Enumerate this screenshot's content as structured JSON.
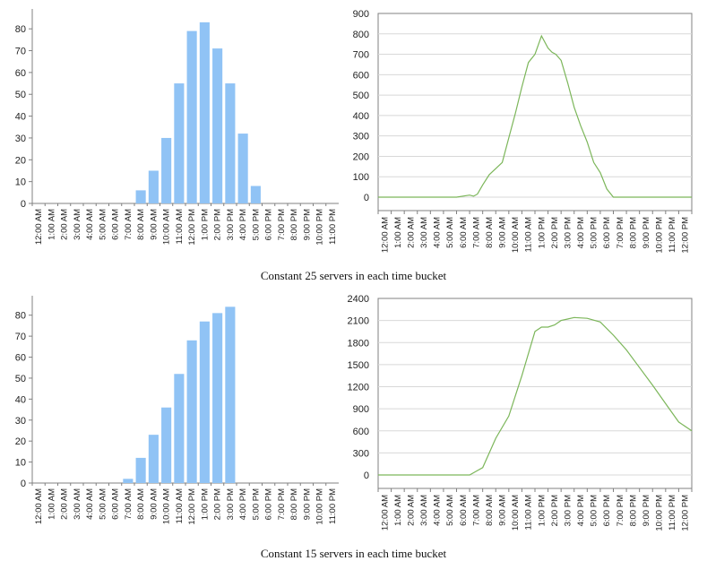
{
  "time_labels_am_pm": [
    "12:00 AM",
    "1:00 AM",
    "2:00 AM",
    "3:00 AM",
    "4:00 AM",
    "5:00 AM",
    "6:00 AM",
    "7:00 AM",
    "8:00 AM",
    "9:00 AM",
    "10:00 AM",
    "11:00 AM",
    "12:00 PM",
    "1:00 PM",
    "2:00 PM",
    "3:00 PM",
    "4:00 PM",
    "5:00 PM",
    "6:00 PM",
    "7:00 PM",
    "8:00 PM",
    "9:00 PM",
    "10:00 PM",
    "11:00 PM"
  ],
  "time_labels_line": [
    "12:00 AM",
    "1:00 AM",
    "2:00 AM",
    "3:00 AM",
    "4:00 AM",
    "5:00 AM",
    "6:00 AM",
    "7:00 AM",
    "8:00 AM",
    "9:00 AM",
    "10:00 AM",
    "11:00 AM",
    "1:00 PM",
    "2:00 PM",
    "3:00 PM",
    "4:00 PM",
    "5:00 PM",
    "6:00 PM",
    "7:00 PM",
    "8:00 PM",
    "9:00 PM",
    "10:00 PM",
    "11:00 PM",
    "12:00 PM"
  ],
  "captions": {
    "top": "Constant 25 servers in each time bucket",
    "bottom": "Constant 15 servers in each time bucket"
  },
  "colors": {
    "bar": "#90c3f5",
    "line": "#7cb65a",
    "grid": "#d8d8d8",
    "axis": "#808080"
  },
  "chart_data": [
    {
      "type": "bar",
      "panel": "top-left",
      "values": [
        0,
        0,
        0,
        0,
        0,
        0,
        0,
        0,
        6,
        15,
        30,
        55,
        79,
        83,
        71,
        55,
        32,
        8,
        0,
        0,
        0,
        0,
        0,
        0
      ],
      "ylim": [
        0,
        85
      ],
      "yticks": [
        0,
        10,
        20,
        30,
        40,
        50,
        60,
        70,
        80
      ],
      "grid": false,
      "xlabel": "",
      "ylabel": ""
    },
    {
      "type": "line",
      "panel": "top-right",
      "x": [
        0,
        1,
        2,
        3,
        4,
        5,
        6,
        7,
        7.3,
        7.6,
        8,
        8.5,
        9,
        9.5,
        10,
        10.5,
        11,
        11.5,
        12,
        12.5,
        13,
        13.3,
        13.6,
        14,
        14.5,
        15,
        15.5,
        16,
        16.5,
        17,
        17.5,
        18,
        18.2,
        19,
        20,
        21,
        22,
        23,
        24
      ],
      "y": [
        0,
        0,
        0,
        0,
        0,
        0,
        0,
        10,
        5,
        15,
        60,
        110,
        140,
        170,
        290,
        410,
        540,
        660,
        700,
        790,
        730,
        710,
        700,
        670,
        560,
        440,
        350,
        270,
        170,
        120,
        40,
        0,
        0,
        0,
        0,
        0,
        0,
        0,
        0
      ],
      "ylim": [
        0,
        900
      ],
      "yticks": [
        0,
        100,
        200,
        300,
        400,
        500,
        600,
        700,
        800,
        900
      ],
      "grid": true,
      "xlabel": "",
      "ylabel": ""
    },
    {
      "type": "bar",
      "panel": "bottom-left",
      "values": [
        0,
        0,
        0,
        0,
        0,
        0,
        0,
        2,
        12,
        23,
        36,
        52,
        68,
        77,
        81,
        84,
        0,
        0,
        0,
        0,
        0,
        0,
        0,
        0
      ],
      "ylim": [
        0,
        85
      ],
      "yticks": [
        0,
        10,
        20,
        30,
        40,
        50,
        60,
        70,
        80
      ],
      "grid": false,
      "xlabel": "",
      "ylabel": ""
    },
    {
      "type": "line",
      "panel": "bottom-right",
      "x": [
        0,
        1,
        2,
        3,
        4,
        5,
        6,
        7,
        7.5,
        8,
        9,
        10,
        11,
        12,
        12.5,
        13,
        13.5,
        14,
        14.5,
        15,
        16,
        17,
        18,
        19,
        20,
        21,
        22,
        23,
        24
      ],
      "y": [
        0,
        0,
        0,
        0,
        0,
        0,
        0,
        0,
        50,
        100,
        500,
        800,
        1350,
        1950,
        2010,
        2010,
        2040,
        2100,
        2120,
        2140,
        2130,
        2080,
        1900,
        1700,
        1460,
        1220,
        970,
        720,
        600
      ],
      "ylim": [
        0,
        2400
      ],
      "yticks": [
        0,
        300,
        600,
        900,
        1200,
        1500,
        1800,
        2100,
        2400
      ],
      "grid": true,
      "xlabel": "",
      "ylabel": ""
    }
  ]
}
